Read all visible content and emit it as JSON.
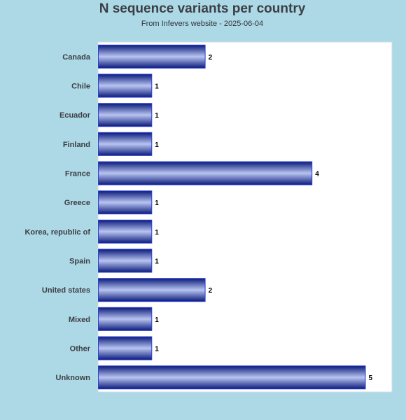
{
  "chart_data": {
    "type": "bar",
    "orientation": "horizontal",
    "title": "N sequence variants per country",
    "subtitle": "From Infevers website - 2025-06-04",
    "xlabel": "",
    "ylabel": "",
    "xlim": [
      0,
      5.5
    ],
    "grid": false,
    "categories": [
      "Canada",
      "Chile",
      "Ecuador",
      "Finland",
      "France",
      "Greece",
      "Korea, republic of",
      "Spain",
      "United states",
      "Mixed",
      "Other",
      "Unknown"
    ],
    "values": [
      2,
      1,
      1,
      1,
      4,
      1,
      1,
      1,
      2,
      1,
      1,
      5
    ],
    "colors": {
      "bar_dark": "#0a1a7a",
      "bar_light": "#b8c4f0",
      "bar_border": "#2a3ed8",
      "plot_bg": "#ffffff",
      "page_bg": "#add8e6"
    }
  }
}
